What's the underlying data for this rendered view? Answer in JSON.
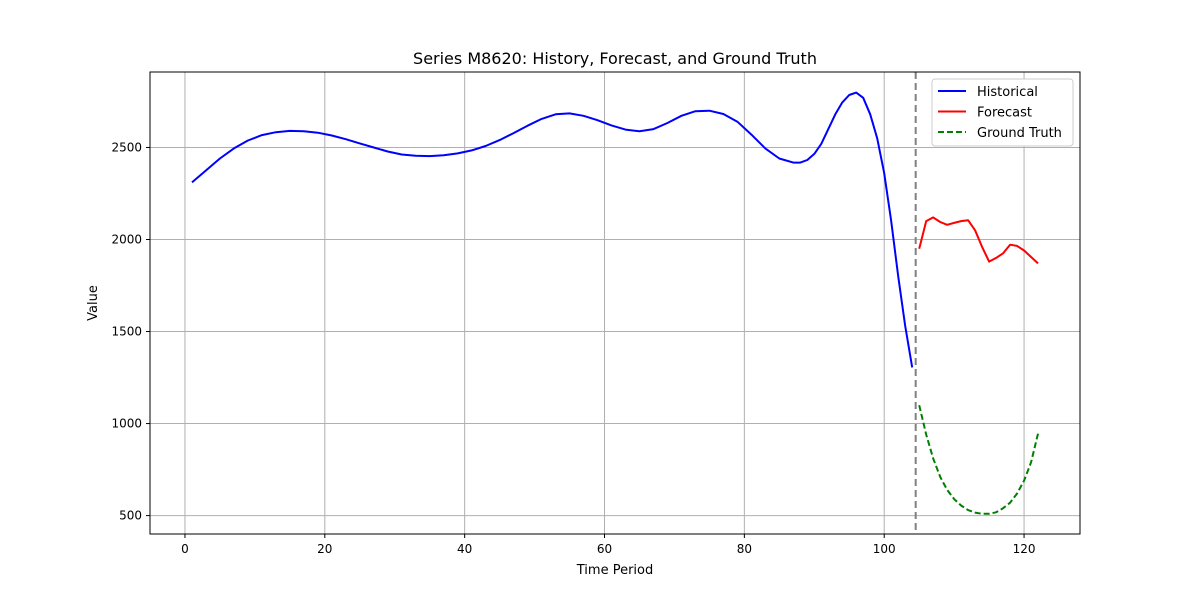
{
  "chart_data": {
    "type": "line",
    "title": "Series M8620: History, Forecast, and Ground Truth",
    "xlabel": "Time Period",
    "ylabel": "Value",
    "xlim": [
      -5,
      128
    ],
    "ylim": [
      400,
      2910
    ],
    "x_ticks": [
      0,
      20,
      40,
      60,
      80,
      100,
      120
    ],
    "y_ticks": [
      500,
      1000,
      1500,
      2000,
      2500
    ],
    "grid": true,
    "legend_position": "top-right",
    "forecast_start_marker": 104.5,
    "series": [
      {
        "name": "Historical",
        "color": "#0000ff",
        "style": "solid",
        "x": [
          1,
          3,
          5,
          7,
          9,
          11,
          13,
          15,
          17,
          19,
          21,
          23,
          25,
          27,
          29,
          31,
          33,
          35,
          37,
          39,
          41,
          43,
          45,
          47,
          49,
          51,
          53,
          55,
          57,
          59,
          61,
          63,
          65,
          67,
          69,
          71,
          73,
          75,
          77,
          79,
          81,
          83,
          85,
          87,
          88,
          89,
          90,
          91,
          92,
          93,
          94,
          95,
          96,
          97,
          98,
          99,
          100,
          101,
          102,
          103,
          104
        ],
        "values": [
          2310,
          2375,
          2440,
          2495,
          2538,
          2567,
          2583,
          2590,
          2588,
          2580,
          2565,
          2545,
          2522,
          2500,
          2478,
          2462,
          2455,
          2453,
          2458,
          2468,
          2484,
          2508,
          2540,
          2578,
          2618,
          2655,
          2680,
          2685,
          2672,
          2648,
          2620,
          2597,
          2588,
          2600,
          2633,
          2672,
          2697,
          2700,
          2682,
          2640,
          2570,
          2495,
          2440,
          2418,
          2418,
          2432,
          2465,
          2520,
          2600,
          2680,
          2745,
          2785,
          2798,
          2770,
          2680,
          2550,
          2360,
          2100,
          1800,
          1530,
          1305
        ]
      },
      {
        "name": "Forecast",
        "color": "#ff0000",
        "style": "solid",
        "x": [
          105,
          106,
          107,
          108,
          109,
          110,
          111,
          112,
          113,
          114,
          115,
          116,
          117,
          118,
          119,
          120,
          121,
          122
        ],
        "values": [
          1950,
          2100,
          2120,
          2095,
          2080,
          2090,
          2100,
          2105,
          2050,
          1960,
          1880,
          1900,
          1925,
          1972,
          1965,
          1940,
          1905,
          1870
        ]
      },
      {
        "name": "Ground Truth",
        "color": "#008000",
        "style": "dashed",
        "x": [
          105,
          106,
          107,
          108,
          109,
          110,
          111,
          112,
          113,
          114,
          115,
          116,
          117,
          118,
          119,
          120,
          121,
          122
        ],
        "values": [
          1100,
          940,
          810,
          710,
          640,
          590,
          555,
          530,
          516,
          510,
          510,
          518,
          540,
          570,
          620,
          690,
          790,
          945
        ]
      }
    ]
  }
}
